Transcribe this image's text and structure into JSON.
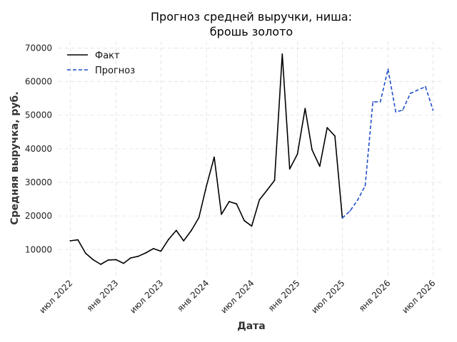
{
  "chart_data": {
    "type": "line",
    "title": [
      "Прогноз средней выручки, ниша:",
      "брошь золото"
    ],
    "xlabel": "Дата",
    "ylabel": "Средняя выручка, руб.",
    "ylim": [
      2000,
      72000
    ],
    "xlim": [
      "2022-05-15",
      "2026-08-15"
    ],
    "y_ticks": [
      10000,
      20000,
      30000,
      40000,
      50000,
      60000,
      70000
    ],
    "x_ticks": [
      {
        "date": "2022-07-01",
        "label": "июл 2022"
      },
      {
        "date": "2023-01-01",
        "label": "янв 2023"
      },
      {
        "date": "2023-07-01",
        "label": "июл 2023"
      },
      {
        "date": "2024-01-01",
        "label": "янв 2024"
      },
      {
        "date": "2024-07-01",
        "label": "июл 2024"
      },
      {
        "date": "2025-01-01",
        "label": "янв 2025"
      },
      {
        "date": "2025-07-01",
        "label": "июл 2025"
      },
      {
        "date": "2026-01-01",
        "label": "янв 2026"
      },
      {
        "date": "2026-07-01",
        "label": "июл 2026"
      }
    ],
    "grid": true,
    "legend_position": "top-left",
    "series": [
      {
        "name": "Факт",
        "color": "#000000",
        "style": "solid",
        "points": [
          [
            "2022-07-01",
            12600
          ],
          [
            "2022-08-01",
            12900
          ],
          [
            "2022-09-01",
            8900
          ],
          [
            "2022-10-01",
            7000
          ],
          [
            "2022-11-01",
            5600
          ],
          [
            "2022-12-01",
            6900
          ],
          [
            "2023-01-01",
            7000
          ],
          [
            "2023-02-01",
            5900
          ],
          [
            "2023-03-01",
            7500
          ],
          [
            "2023-04-01",
            8000
          ],
          [
            "2023-05-01",
            9000
          ],
          [
            "2023-06-01",
            10300
          ],
          [
            "2023-07-01",
            9500
          ],
          [
            "2023-08-01",
            13000
          ],
          [
            "2023-09-01",
            15700
          ],
          [
            "2023-10-01",
            12600
          ],
          [
            "2023-11-01",
            15700
          ],
          [
            "2023-12-01",
            19500
          ],
          [
            "2024-01-01",
            29000
          ],
          [
            "2024-02-01",
            37500
          ],
          [
            "2024-03-01",
            20500
          ],
          [
            "2024-04-01",
            24300
          ],
          [
            "2024-05-01",
            23600
          ],
          [
            "2024-06-01",
            18600
          ],
          [
            "2024-07-01",
            17000
          ],
          [
            "2024-08-01",
            24800
          ],
          [
            "2024-09-01",
            27700
          ],
          [
            "2024-10-01",
            30600
          ],
          [
            "2024-11-01",
            68200
          ],
          [
            "2024-12-01",
            34000
          ],
          [
            "2025-01-01",
            38400
          ],
          [
            "2025-02-01",
            52000
          ],
          [
            "2025-03-01",
            39700
          ],
          [
            "2025-04-01",
            34800
          ],
          [
            "2025-05-01",
            46300
          ],
          [
            "2025-06-01",
            43800
          ],
          [
            "2025-07-01",
            19400
          ]
        ]
      },
      {
        "name": "Прогноз",
        "color": "#1f4fc8",
        "style": "dashed",
        "points": [
          [
            "2025-07-01",
            19400
          ],
          [
            "2025-08-01",
            21500
          ],
          [
            "2025-09-01",
            24800
          ],
          [
            "2025-10-01",
            29000
          ],
          [
            "2025-11-01",
            54000
          ],
          [
            "2025-12-01",
            54000
          ],
          [
            "2026-01-01",
            63700
          ],
          [
            "2026-02-01",
            51000
          ],
          [
            "2026-03-01",
            51500
          ],
          [
            "2026-04-01",
            56500
          ],
          [
            "2026-05-01",
            57500
          ],
          [
            "2026-06-01",
            58500
          ],
          [
            "2026-07-01",
            51500
          ]
        ]
      }
    ]
  }
}
